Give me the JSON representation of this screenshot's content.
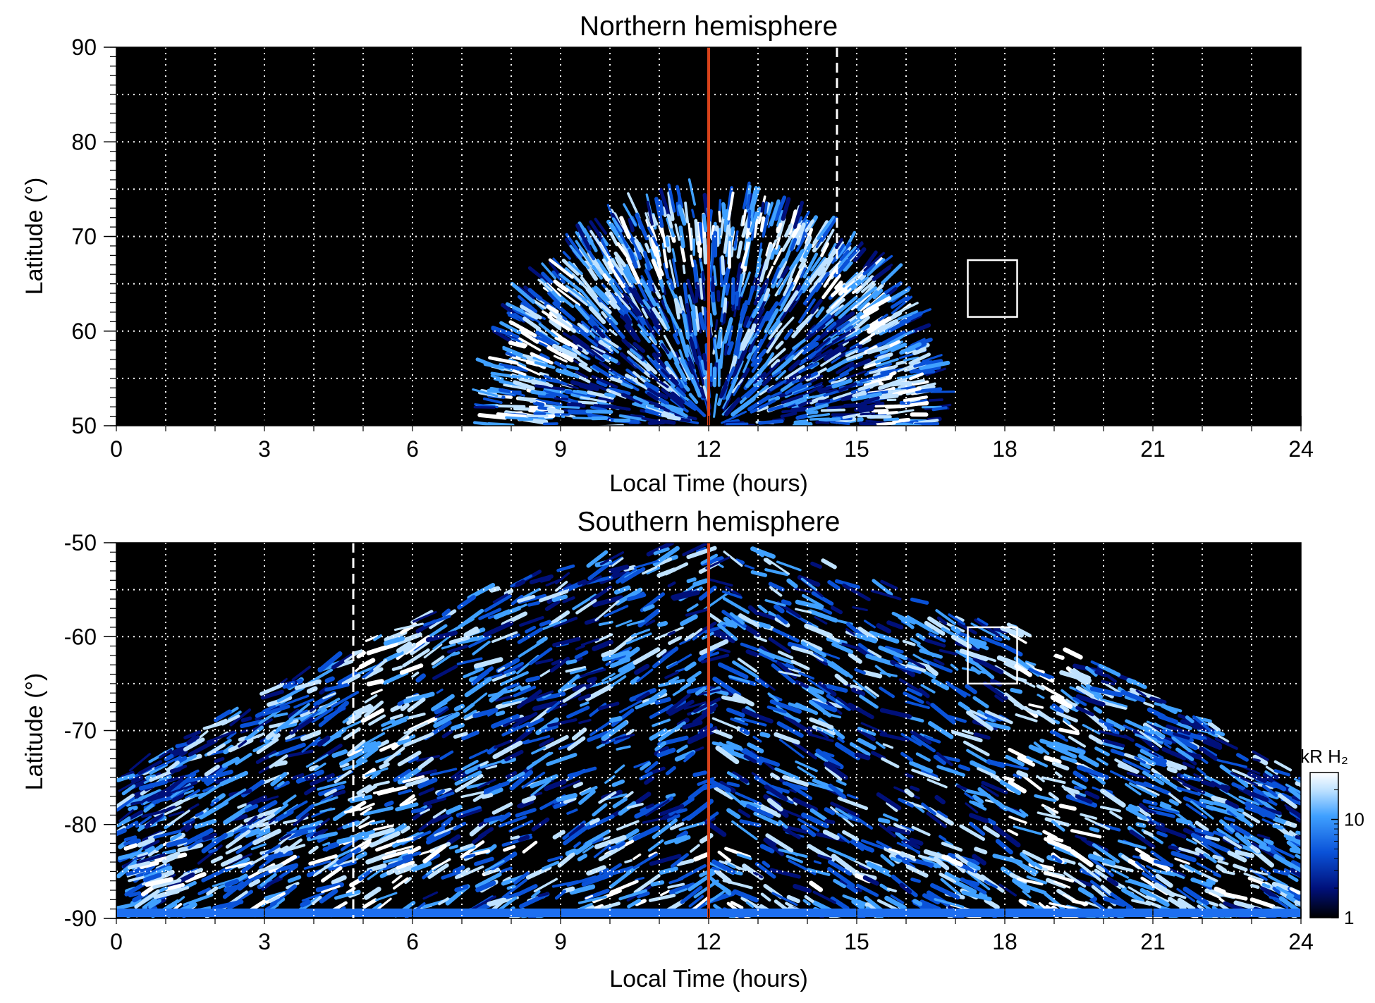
{
  "chart_data": [
    {
      "type": "heatmap",
      "title": "Northern hemisphere",
      "xlabel": "Local Time (hours)",
      "ylabel": "Latitude (°)",
      "xlim": [
        0,
        24
      ],
      "ylim": [
        50,
        90
      ],
      "xticks": [
        "0",
        "3",
        "6",
        "9",
        "12",
        "15",
        "18",
        "21",
        "24"
      ],
      "yticks": [
        "50",
        "60",
        "70",
        "80",
        "90"
      ],
      "grid": true,
      "noon_line_lt": 12,
      "dashed_line": {
        "lt": 14.6,
        "lat_range": [
          66,
          90
        ]
      },
      "box": {
        "lt": [
          17.25,
          18.25
        ],
        "lat": [
          61.5,
          67.5
        ]
      },
      "emission_region": {
        "lt_range": [
          7.6,
          16.6
        ],
        "max_lat": 73.5,
        "inner_ring_lat": 60
      }
    },
    {
      "type": "heatmap",
      "title": "Southern hemisphere",
      "xlabel": "Local Time (hours)",
      "ylabel": "Latitude (°)",
      "xlim": [
        0,
        24
      ],
      "ylim": [
        -90,
        -50
      ],
      "xticks": [
        "0",
        "3",
        "6",
        "9",
        "12",
        "15",
        "18",
        "21",
        "24"
      ],
      "yticks": [
        "-90",
        "-80",
        "-70",
        "-60",
        "-50"
      ],
      "grid": true,
      "noon_line_lt": 12,
      "dashed_line": {
        "lt": 4.8,
        "lat_range": [
          -90,
          -50
        ]
      },
      "box": {
        "lt": [
          17.25,
          18.25
        ],
        "lat": [
          -65,
          -59
        ]
      },
      "emission_region": {
        "lt_range": [
          0,
          24
        ],
        "edge_lat": -75,
        "top_lat": -50
      }
    }
  ],
  "colorbar": {
    "label": "kR H₂",
    "ticks": [
      "1",
      "10"
    ],
    "scale": "log",
    "range": [
      1,
      30
    ],
    "colors": [
      "#000000",
      "#00107a",
      "#0a52d8",
      "#3fa0ff",
      "#bfe2ff",
      "#ffffff"
    ]
  },
  "colors": {
    "background": "#000000",
    "noon_line": "#d7421a",
    "grid": "#ffffff"
  }
}
